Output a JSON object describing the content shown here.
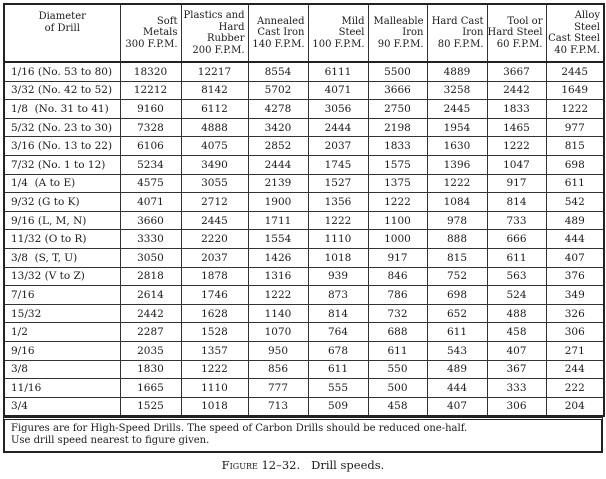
{
  "table": {
    "headers": [
      [
        "Diameter",
        "of Drill",
        ""
      ],
      [
        "Soft",
        "Metals",
        "300 F.P.M."
      ],
      [
        "Plastics and",
        "Hard Rubber",
        "200 F.P.M."
      ],
      [
        "Annealed",
        "Cast Iron",
        "140 F.P.M."
      ],
      [
        "Mild",
        "Steel",
        "100 F.P.M."
      ],
      [
        "Malleable",
        "Iron",
        "90 F.P.M."
      ],
      [
        "Hard Cast",
        "Iron",
        "80 F.P.M."
      ],
      [
        "Tool or",
        "Hard Steel",
        "60 F.P.M."
      ],
      [
        "Alloy Steel",
        "Cast Steel",
        "40 F.P.M."
      ]
    ],
    "rows": [
      [
        "1/16 (No. 53 to 80)",
        "18320",
        "12217",
        "8554",
        "6111",
        "5500",
        "4889",
        "3667",
        "2445"
      ],
      [
        "3/32 (No. 42 to 52)",
        "12212",
        "8142",
        "5702",
        "4071",
        "3666",
        "3258",
        "2442",
        "1649"
      ],
      [
        "1/8  (No. 31 to 41)",
        "9160",
        "6112",
        "4278",
        "3056",
        "2750",
        "2445",
        "1833",
        "1222"
      ],
      [
        "5/32 (No. 23 to 30)",
        "7328",
        "4888",
        "3420",
        "2444",
        "2198",
        "1954",
        "1465",
        "977"
      ],
      [
        "3/16 (No. 13 to 22)",
        "6106",
        "4075",
        "2852",
        "2037",
        "1833",
        "1630",
        "1222",
        "815"
      ],
      [
        "7/32 (No. 1 to 12)",
        "5234",
        "3490",
        "2444",
        "1745",
        "1575",
        "1396",
        "1047",
        "698"
      ],
      [
        "1/4  (A to E)",
        "4575",
        "3055",
        "2139",
        "1527",
        "1375",
        "1222",
        "917",
        "611"
      ],
      [
        "9/32 (G to K)",
        "4071",
        "2712",
        "1900",
        "1356",
        "1222",
        "1084",
        "814",
        "542"
      ],
      [
        "9/16 (L, M, N)",
        "3660",
        "2445",
        "1711",
        "1222",
        "1100",
        "978",
        "733",
        "489"
      ],
      [
        "11/32 (O to R)",
        "3330",
        "2220",
        "1554",
        "1110",
        "1000",
        "888",
        "666",
        "444"
      ],
      [
        "3/8  (S, T, U)",
        "3050",
        "2037",
        "1426",
        "1018",
        "917",
        "815",
        "611",
        "407"
      ],
      [
        "13/32 (V to Z)",
        "2818",
        "1878",
        "1316",
        "939",
        "846",
        "752",
        "563",
        "376"
      ],
      [
        "7/16",
        "2614",
        "1746",
        "1222",
        "873",
        "786",
        "698",
        "524",
        "349"
      ],
      [
        "15/32",
        "2442",
        "1628",
        "1140",
        "814",
        "732",
        "652",
        "488",
        "326"
      ],
      [
        "1/2",
        "2287",
        "1528",
        "1070",
        "764",
        "688",
        "611",
        "458",
        "306"
      ],
      [
        "9/16",
        "2035",
        "1357",
        "950",
        "678",
        "611",
        "543",
        "407",
        "271"
      ],
      [
        "3/8",
        "1830",
        "1222",
        "856",
        "611",
        "550",
        "489",
        "367",
        "244"
      ],
      [
        "11/16",
        "1665",
        "1110",
        "777",
        "555",
        "500",
        "444",
        "333",
        "222"
      ],
      [
        "3/4",
        "1525",
        "1018",
        "713",
        "509",
        "458",
        "407",
        "306",
        "204"
      ]
    ]
  },
  "footnote": [
    "Figures are for High-Speed Drills.  The speed of Carbon Drills should be reduced one-half.",
    "Use drill speed nearest to figure given."
  ],
  "caption": {
    "label": "Figure 12–32.",
    "text": "Drill speeds."
  }
}
